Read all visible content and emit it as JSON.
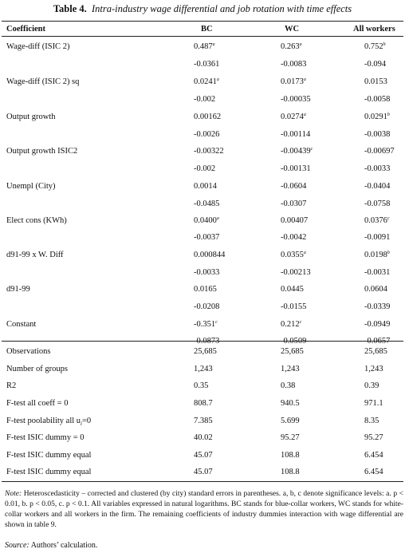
{
  "title": {
    "label": "Table 4.",
    "text": "Intra-industry wage differential and job rotation with time effects"
  },
  "headers": {
    "coefficient": "Coefficient",
    "bc": "BC",
    "wc": "WC",
    "all": "All workers"
  },
  "rows": [
    {
      "label": "Wage-diff (ISIC 2)",
      "bc": "0.487",
      "bc_sup": "a",
      "wc": "0.263",
      "wc_sup": "a",
      "all": "0.752",
      "all_sup": "b"
    },
    {
      "label": "",
      "bc": "-0.0361",
      "wc": "-0.0083",
      "all": "-0.094"
    },
    {
      "label": "Wage-diff (ISIC 2) sq",
      "bc": "0.0241",
      "bc_sup": "a",
      "wc": "0.0173",
      "wc_sup": "a",
      "all": "0.0153"
    },
    {
      "label": "",
      "bc": "-0.002",
      "wc": "-0.00035",
      "all": "-0.0058"
    },
    {
      "label": "Output growth",
      "bc": "0.00162",
      "wc": "0.0274",
      "wc_sup": "a",
      "all": "0.0291",
      "all_sup": "b"
    },
    {
      "label": "",
      "bc": "-0.0026",
      "wc": "-0.00114",
      "all": "-0.0038"
    },
    {
      "label": "Output growth ISIC2",
      "bc": "-0.00322",
      "wc": "-0.00439",
      "wc_sup": "c",
      "all": "-0.00697"
    },
    {
      "label": "",
      "bc": "-0.002",
      "wc": "-0.00131",
      "all": "-0.0033"
    },
    {
      "label": "Unempl (City)",
      "bc": "0.0014",
      "wc": "-0.0604",
      "all": "-0.0404"
    },
    {
      "label": "",
      "bc": "-0.0485",
      "wc": "-0.0307",
      "all": "-0.0758"
    },
    {
      "label": "Elect cons (KWh)",
      "bc": "0.0400",
      "bc_sup": "a",
      "wc": "0.00407",
      "all": "0.0376",
      "all_sup": "c"
    },
    {
      "label": "",
      "bc": "-0.0037",
      "wc": "-0.0042",
      "all": "-0.0091"
    },
    {
      "label": "d91-99 x W. Diff",
      "bc": "0.000844",
      "wc": "0.0355",
      "wc_sup": "a",
      "all": "0.0198",
      "all_sup": "b"
    },
    {
      "label": "",
      "bc": "-0.0033",
      "wc": "-0.00213",
      "all": "-0.0031"
    },
    {
      "label": "d91-99",
      "bc": "0.0165",
      "wc": "0.0445",
      "all": "0.0604"
    },
    {
      "label": "",
      "bc": "-0.0208",
      "wc": "-0.0155",
      "all": "-0.0339"
    },
    {
      "label": "Constant",
      "bc": "-0.351",
      "bc_sup": "c",
      "wc": "0.212",
      "wc_sup": "c",
      "all": "-0.0949"
    },
    {
      "label": "",
      "bc": "-0.0873",
      "wc": "-0.0509",
      "all": "-0.0657"
    }
  ],
  "stats": [
    {
      "label": "Observations",
      "bc": "25,685",
      "wc": "25,685",
      "all": "25,685"
    },
    {
      "label": "Number of groups",
      "bc": "1,243",
      "wc": "1,243",
      "all": "1,243"
    },
    {
      "label": "R2",
      "bc": "0.35",
      "wc": "0.38",
      "all": "0.39"
    },
    {
      "label": "F-test all coeff = 0",
      "bc": "808.7",
      "wc": "940.5",
      "all": "971.1"
    },
    {
      "label": "F-test poolability all u",
      "label_sub": "i",
      "label_tail": "=0",
      "bc": "7.385",
      "wc": "5.699",
      "all": "8.35"
    },
    {
      "label": "F-test ISIC dummy = 0",
      "bc": "40.02",
      "wc": "95.27",
      "all": "95.27"
    },
    {
      "label": "F-test ISIC dummy equal",
      "bc": "45.07",
      "wc": "108.8",
      "all": "6.454"
    },
    {
      "label": "F-test ISIC dummy equal",
      "bc": "45.07",
      "wc": "108.8",
      "all": "6.454"
    }
  ],
  "note": {
    "label": "Note:",
    "text": "Heteroscedasticity – corrected and clustered (by city) standard errors in parentheses. a, b, c denote significance levels: a.  p < 0.01, b.  p < 0.05, c.  p < 0.1.  All variables expressed in natural logarithms. BC stands for blue-collar workers, WC stands for white-collar workers and all workers in the firm.  The remaining coefficients of industry dummies interaction with wage differential are shown in table 9."
  },
  "source": {
    "label": "Source:",
    "text": "Authors’ calculation."
  }
}
